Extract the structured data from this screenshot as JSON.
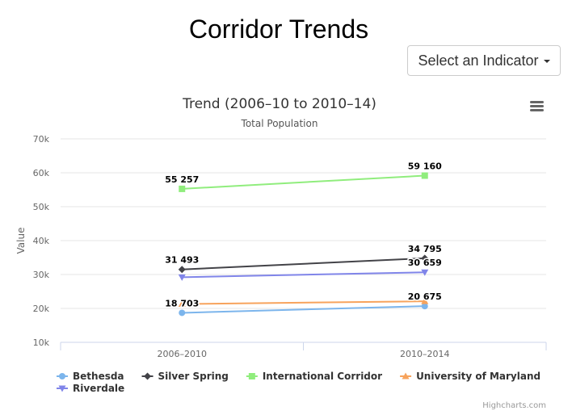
{
  "header": {
    "title": "Corridor Trends",
    "indicator_button_label": "Select an Indicator"
  },
  "chart_menu": {
    "icon": "hamburger-menu-icon"
  },
  "credits": "Highcharts.com",
  "chart_data": {
    "type": "line",
    "title": "Trend (2006–10 to 2010–14)",
    "subtitle": "Total Population",
    "xlabel": "",
    "ylabel": "Value",
    "categories": [
      "2006–2010",
      "2010–2014"
    ],
    "ylim": [
      10000,
      70000
    ],
    "yticks": [
      10000,
      20000,
      30000,
      40000,
      50000,
      60000,
      70000
    ],
    "ytick_labels": [
      "10k",
      "20k",
      "30k",
      "40k",
      "50k",
      "60k",
      "70k"
    ],
    "grid": true,
    "legend_position": "bottom-left",
    "series": [
      {
        "name": "Bethesda",
        "color": "#7cb5ec",
        "marker": "circle",
        "values": [
          18703,
          20675
        ],
        "data_labels": [
          "18 703",
          "20 675"
        ]
      },
      {
        "name": "Silver Spring",
        "color": "#434348",
        "marker": "diamond",
        "values": [
          31493,
          34795
        ],
        "data_labels": [
          "31 493",
          "34 795"
        ]
      },
      {
        "name": "International Corridor",
        "color": "#90ed7d",
        "marker": "square",
        "values": [
          55257,
          59160
        ],
        "data_labels": [
          "55 257",
          "59 160"
        ]
      },
      {
        "name": "University of Maryland",
        "color": "#f7a35c",
        "marker": "triangle",
        "values": [
          21300,
          22100
        ],
        "data_labels": [
          "",
          ""
        ]
      },
      {
        "name": "Riverdale",
        "color": "#8085e9",
        "marker": "triangle-down",
        "values": [
          29200,
          30659
        ],
        "data_labels": [
          "",
          "30 659"
        ]
      }
    ]
  }
}
